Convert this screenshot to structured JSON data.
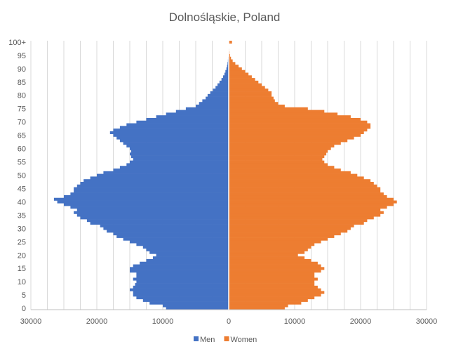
{
  "chart_data": {
    "type": "bar",
    "orientation": "horizontal",
    "layout": "population-pyramid",
    "title": "Dolnośląskie, Poland",
    "x_tick_values": [
      -30000,
      -20000,
      -10000,
      0,
      10000,
      20000,
      30000
    ],
    "x_tick_labels": [
      "30000",
      "20000",
      "10000",
      "0",
      "10000",
      "20000",
      "30000"
    ],
    "xlim": [
      -30000,
      30000
    ],
    "y_tick_labels": [
      "0",
      "5",
      "10",
      "15",
      "20",
      "25",
      "30",
      "35",
      "40",
      "45",
      "50",
      "55",
      "60",
      "65",
      "70",
      "75",
      "80",
      "85",
      "90",
      "95",
      "100+"
    ],
    "ages": [
      0,
      1,
      2,
      3,
      4,
      5,
      6,
      7,
      8,
      9,
      10,
      11,
      12,
      13,
      14,
      15,
      16,
      17,
      18,
      19,
      20,
      21,
      22,
      23,
      24,
      25,
      26,
      27,
      28,
      29,
      30,
      31,
      32,
      33,
      34,
      35,
      36,
      37,
      38,
      39,
      40,
      41,
      42,
      43,
      44,
      45,
      46,
      47,
      48,
      49,
      50,
      51,
      52,
      53,
      54,
      55,
      56,
      57,
      58,
      59,
      60,
      61,
      62,
      63,
      64,
      65,
      66,
      67,
      68,
      69,
      70,
      71,
      72,
      73,
      74,
      75,
      76,
      77,
      78,
      79,
      80,
      81,
      82,
      83,
      84,
      85,
      86,
      87,
      88,
      89,
      90,
      91,
      92,
      93,
      94,
      95,
      96,
      97,
      98,
      99,
      100
    ],
    "grid": "vertical",
    "legend_position": "bottom",
    "series": [
      {
        "name": "Men",
        "color": "#4472C4",
        "values": [
          9500,
          10000,
          12000,
          13000,
          14000,
          14500,
          14500,
          15000,
          14500,
          14200,
          14000,
          14500,
          14000,
          14000,
          15000,
          15000,
          14500,
          13500,
          12500,
          11500,
          11000,
          12000,
          12500,
          13000,
          14000,
          15000,
          16000,
          17000,
          17500,
          18500,
          19000,
          19500,
          21000,
          21500,
          22500,
          23000,
          23500,
          23000,
          24000,
          25000,
          26000,
          26500,
          25000,
          24000,
          23500,
          23500,
          23000,
          22500,
          22000,
          21000,
          20000,
          19000,
          17500,
          16500,
          15500,
          15000,
          14500,
          14800,
          15000,
          14800,
          15000,
          15500,
          16000,
          16500,
          17000,
          17500,
          18000,
          17500,
          16500,
          15500,
          14000,
          12500,
          11000,
          9500,
          8000,
          6500,
          5000,
          4500,
          4000,
          3500,
          3200,
          2800,
          2400,
          2000,
          1700,
          1400,
          1100,
          850,
          650,
          500,
          350,
          250,
          180,
          120,
          80,
          40,
          25,
          15,
          10,
          5,
          10
        ]
      },
      {
        "name": "Women",
        "color": "#ED7D31",
        "values": [
          8500,
          9000,
          11000,
          12000,
          13000,
          14000,
          14500,
          14000,
          13500,
          13000,
          13000,
          13500,
          13000,
          13000,
          14000,
          14500,
          14000,
          13500,
          12500,
          11500,
          10500,
          11500,
          12000,
          12500,
          13000,
          14000,
          15000,
          16000,
          17000,
          18000,
          18500,
          19000,
          20500,
          21000,
          22000,
          23000,
          23500,
          23000,
          24000,
          25000,
          25500,
          25000,
          24000,
          23500,
          23000,
          23000,
          22500,
          22000,
          21500,
          20500,
          19500,
          18500,
          17000,
          16000,
          15000,
          14500,
          14200,
          14500,
          14800,
          15000,
          15500,
          16000,
          17000,
          18000,
          19000,
          20000,
          20500,
          21000,
          21500,
          21500,
          21000,
          20000,
          18500,
          16500,
          14500,
          12000,
          8500,
          7500,
          7000,
          6800,
          6500,
          6500,
          6000,
          5500,
          5000,
          4500,
          4000,
          3500,
          3000,
          2500,
          2000,
          1500,
          1000,
          600,
          350,
          200,
          120,
          80,
          50,
          30,
          500
        ]
      }
    ]
  }
}
